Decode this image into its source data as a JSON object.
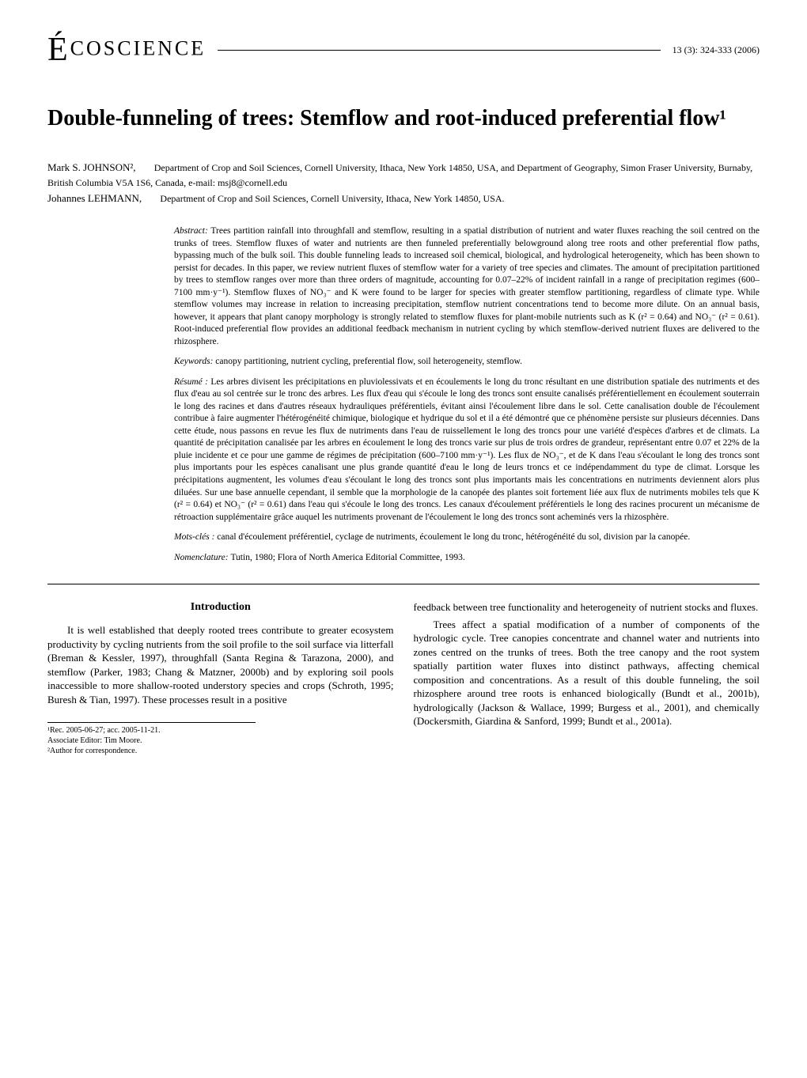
{
  "header": {
    "journal_name": "ÉCOSCIENCE",
    "issue": "13 (3): 324-333 (2006)"
  },
  "title": "Double-funneling of trees: Stemflow and root-induced preferential flow¹",
  "authors": [
    {
      "name": "Mark S. JOHNSON²,",
      "affiliation": "Department of Crop and Soil Sciences, Cornell University, Ithaca, New York 14850, USA, and Department of Geography, Simon Fraser University, Burnaby, British Columbia V5A 1S6, Canada, e-mail: msj8@cornell.edu"
    },
    {
      "name": "Johannes LEHMANN,",
      "affiliation": "Department of Crop and Soil Sciences, Cornell University, Ithaca, New York 14850, USA."
    }
  ],
  "abstract": {
    "label": "Abstract:",
    "text": "Trees partition rainfall into throughfall and stemflow, resulting in a spatial distribution of nutrient and water fluxes reaching the soil centred on the trunks of trees. Stemflow fluxes of water and nutrients are then funneled preferentially belowground along tree roots and other preferential flow paths, bypassing much of the bulk soil. This double funneling leads to increased soil chemical, biological, and hydrological heterogeneity, which has been shown to persist for decades. In this paper, we review nutrient fluxes of stemflow water for a variety of tree species and climates. The amount of precipitation partitioned by trees to stemflow ranges over more than three orders of magnitude, accounting for 0.07–22% of incident rainfall in a range of precipitation regimes (600–7100 mm·y⁻¹). Stemflow fluxes of NO₃⁻ and K were found to be larger for species with greater stemflow partitioning, regardless of climate type. While stemflow volumes may increase in relation to increasing precipitation, stemflow nutrient concentrations tend to become more dilute. On an annual basis, however, it appears that plant canopy morphology is strongly related to stemflow fluxes for plant-mobile nutrients such as K (r² = 0.64) and NO₃⁻ (r² = 0.61). Root-induced preferential flow provides an additional feedback mechanism in nutrient cycling by which stemflow-derived nutrient fluxes are delivered to the rhizosphere."
  },
  "keywords": {
    "label": "Keywords:",
    "text": "canopy partitioning, nutrient cycling, preferential flow, soil heterogeneity, stemflow."
  },
  "resume": {
    "label": "Résumé :",
    "text": "Les arbres divisent les précipitations en pluviolessivats et en écoulements le long du tronc résultant en une distribution spatiale des nutriments et des flux d'eau au sol centrée sur le tronc des arbres. Les flux d'eau qui s'écoule le long des troncs sont ensuite canalisés préférentiellement en écoulement souterrain le long des racines et dans d'autres réseaux hydrauliques préférentiels, évitant ainsi l'écoulement libre dans le sol. Cette canalisation double de l'écoulement contribue à faire augmenter l'hétérogénéité chimique, biologique et hydrique du sol et il a été démontré que ce phénomène persiste sur plusieurs décennies. Dans cette étude, nous passons en revue les flux de nutriments dans l'eau de ruissellement le long des troncs pour une variété d'espèces d'arbres et de climats. La quantité de précipitation canalisée par les arbres en écoulement le long des troncs varie sur plus de trois ordres de grandeur, représentant entre 0.07 et 22% de la pluie incidente et ce pour une gamme de régimes de précipitation (600–7100 mm·y⁻¹). Les flux de NO₃⁻, et de K dans l'eau s'écoulant le long des troncs sont plus importants pour les espèces canalisant une plus grande quantité d'eau le long de leurs troncs et ce indépendamment du type de climat. Lorsque les précipitations augmentent, les volumes d'eau s'écoulant le long des troncs sont plus importants mais les concentrations en nutriments deviennent alors plus diluées. Sur une base annuelle cependant, il semble que la morphologie de la canopée des plantes soit fortement liée aux flux de nutriments mobiles tels que K (r² = 0.64) et NO₃⁻ (r² = 0.61) dans l'eau qui s'écoule le long des troncs. Les canaux d'écoulement préférentiels le long des racines procurent un mécanisme de rétroaction supplémentaire grâce auquel les nutriments provenant de l'écoulement le long des troncs sont acheminés vers la rhizosphère."
  },
  "motscles": {
    "label": "Mots-clés :",
    "text": "canal d'écoulement préférentiel, cyclage de nutriments, écoulement le long du tronc, hétérogénéité du sol, division par la canopée."
  },
  "nomenclature": {
    "label": "Nomenclature:",
    "text": "Tutin, 1980; Flora of North America Editorial Committee, 1993."
  },
  "introduction": {
    "heading": "Introduction",
    "paragraphs_left": [
      "It is well established that deeply rooted trees contribute to greater ecosystem productivity by cycling nutrients from the soil profile to the soil surface via litterfall (Breman & Kessler, 1997), throughfall (Santa Regina & Tarazona, 2000), and stemflow (Parker, 1983; Chang & Matzner, 2000b) and by exploring soil pools inaccessible to more shallow-rooted understory species and crops (Schroth, 1995; Buresh & Tian, 1997). These processes result in a positive"
    ],
    "paragraphs_right": [
      "feedback between tree functionality and heterogeneity of nutrient stocks and fluxes.",
      "Trees affect a spatial modification of a number of components of the hydrologic cycle. Tree canopies concentrate and channel water and nutrients into zones centred on the trunks of trees. Both the tree canopy and the root system spatially partition water fluxes into distinct pathways, affecting chemical composition and concentrations. As a result of this double funneling, the soil rhizosphere around tree roots is enhanced biologically (Bundt et al., 2001b), hydrologically (Jackson & Wallace, 1999; Burgess et al., 2001), and chemically (Dockersmith, Giardina & Sanford, 1999; Bundt et al., 2001a)."
    ]
  },
  "footnotes": [
    "¹Rec. 2005-06-27; acc. 2005-11-21.",
    "Associate Editor: Tim Moore.",
    "²Author for correspondence."
  ]
}
